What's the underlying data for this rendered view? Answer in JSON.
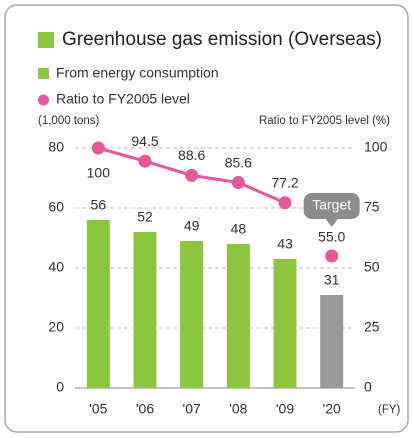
{
  "chart_data": {
    "type": "bar_line",
    "title": "Greenhouse gas emission (Overseas)",
    "categories": [
      "'05",
      "'06",
      "'07",
      "'08",
      "'09",
      "'20"
    ],
    "y_label": "(1,000 tons)",
    "y2_label": "Ratio to FY2005 level (%)",
    "x_label": "(FY)",
    "ylim": [
      0,
      80
    ],
    "yticks": [
      0,
      20,
      40,
      60,
      80
    ],
    "y2lim": [
      0,
      100
    ],
    "y2ticks": [
      0,
      25,
      50,
      75,
      100
    ],
    "grid": true,
    "series": [
      {
        "name": "From energy consumption",
        "type": "bar",
        "color": "#8cc63e",
        "colors": [
          "#8cc63e",
          "#8cc63e",
          "#8cc63e",
          "#8cc63e",
          "#8cc63e",
          "#9a9a9a"
        ],
        "values": [
          56,
          52,
          49,
          48,
          43,
          31
        ]
      },
      {
        "name": "Ratio to FY2005 level",
        "type": "line",
        "axis": "y2",
        "color": "#e8579a",
        "values": [
          100,
          94.5,
          88.6,
          85.6,
          77.2,
          null
        ]
      }
    ],
    "target": {
      "label": "Target",
      "value": 55,
      "value_label": "55.0",
      "color": "#8c8c8c"
    }
  }
}
